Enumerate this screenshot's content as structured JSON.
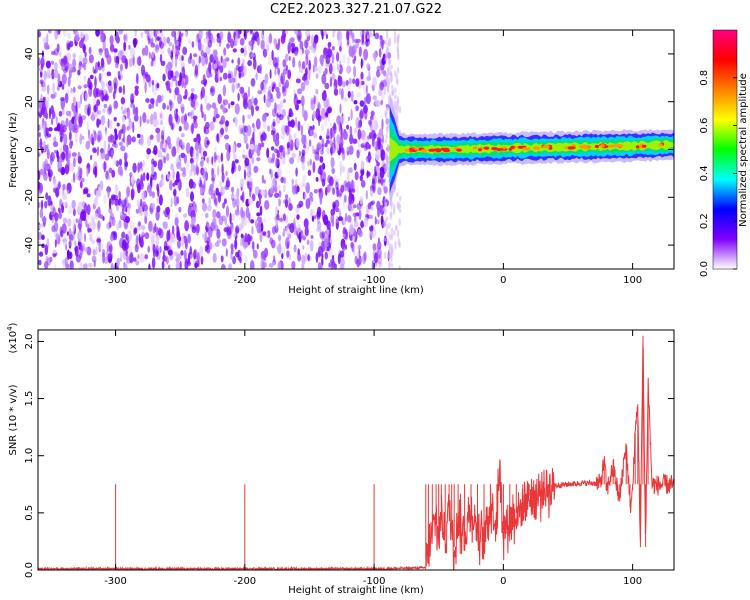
{
  "figure_title": "C2E2.2023.327.21.07.G22",
  "chart_data": [
    {
      "type": "heatmap",
      "name": "spectrogram",
      "xlabel": "Height of straight line (km)",
      "ylabel": "Frequency (Hz)",
      "xlim": [
        -360,
        132
      ],
      "ylim": [
        -50,
        50
      ],
      "xticks": [
        -300,
        -200,
        -100,
        0,
        100
      ],
      "xtick_labels": [
        "-300",
        "-200",
        "-100",
        "0",
        "100"
      ],
      "yticks": [
        -40,
        -20,
        0,
        20,
        40
      ],
      "ytick_labels": [
        "-40",
        "-20",
        "0",
        "20",
        "40"
      ],
      "noise_region_x": [
        -360,
        -88
      ],
      "signal_band_center_hz": [
        0,
        0,
        0.5,
        1,
        1.5,
        2
      ],
      "signal_band_center_x": [
        -88,
        -40,
        0,
        50,
        100,
        132
      ],
      "colorbar": {
        "label": "Normalized spectral amplitude",
        "range": [
          0,
          1
        ],
        "ticks": [
          0.0,
          0.2,
          0.4,
          0.6,
          0.8
        ],
        "tick_labels": [
          "0.0",
          "0.2",
          "0.4",
          "0.6",
          "0.8"
        ],
        "colors": [
          "#ffffff",
          "#8000ff",
          "#0000ff",
          "#00ffff",
          "#00ff00",
          "#ffff00",
          "#ff8000",
          "#ff0000",
          "#ff0080"
        ]
      }
    },
    {
      "type": "line",
      "name": "snr",
      "xlabel": "Height of straight line (km)",
      "ylabel": "SNR (10 * v/v)",
      "y_multiplier": "(x10",
      "y_multiplier_exp": "4",
      "y_multiplier_close": ")",
      "xlim": [
        -360,
        132
      ],
      "ylim": [
        0,
        2.1
      ],
      "xticks": [
        -300,
        -200,
        -100,
        0,
        100
      ],
      "xtick_labels": [
        "-300",
        "-200",
        "-100",
        "0",
        "100"
      ],
      "yticks": [
        0.0,
        0.5,
        1.0,
        1.5,
        2.0
      ],
      "ytick_labels": [
        "0.0",
        "0.5",
        "1.0",
        "1.5",
        "2.0"
      ],
      "color": "#e8383a",
      "series": [
        {
          "x": [
            -360,
            -300,
            -200,
            -100,
            -60,
            -58,
            -55,
            -52,
            -50,
            -48,
            -45,
            -42,
            -40,
            -38,
            -35,
            -30,
            -25,
            -20,
            -15,
            -10,
            -5,
            -3,
            0,
            5,
            10,
            15,
            20,
            25,
            30,
            35,
            40,
            50,
            60,
            70,
            75,
            78,
            80,
            85,
            90,
            92,
            95,
            98,
            100,
            102,
            104,
            106,
            108,
            110,
            112,
            115,
            120,
            125,
            132
          ],
          "y": [
            0.01,
            0.01,
            0.01,
            0.01,
            0.02,
            0.15,
            0.3,
            0.45,
            0.25,
            0.5,
            0.3,
            0.55,
            0.35,
            0.2,
            0.45,
            0.3,
            0.55,
            0.35,
            0.25,
            0.6,
            0.4,
            0.9,
            0.35,
            0.45,
            0.5,
            0.55,
            0.65,
            0.6,
            0.7,
            0.72,
            0.74,
            0.75,
            0.76,
            0.76,
            0.75,
            0.95,
            0.7,
            0.9,
            0.6,
            0.85,
            1.1,
            0.55,
            0.7,
            1.2,
            1.45,
            0.2,
            2.05,
            0.2,
            1.65,
            0.75,
            0.74,
            0.75,
            0.74
          ]
        }
      ]
    }
  ]
}
